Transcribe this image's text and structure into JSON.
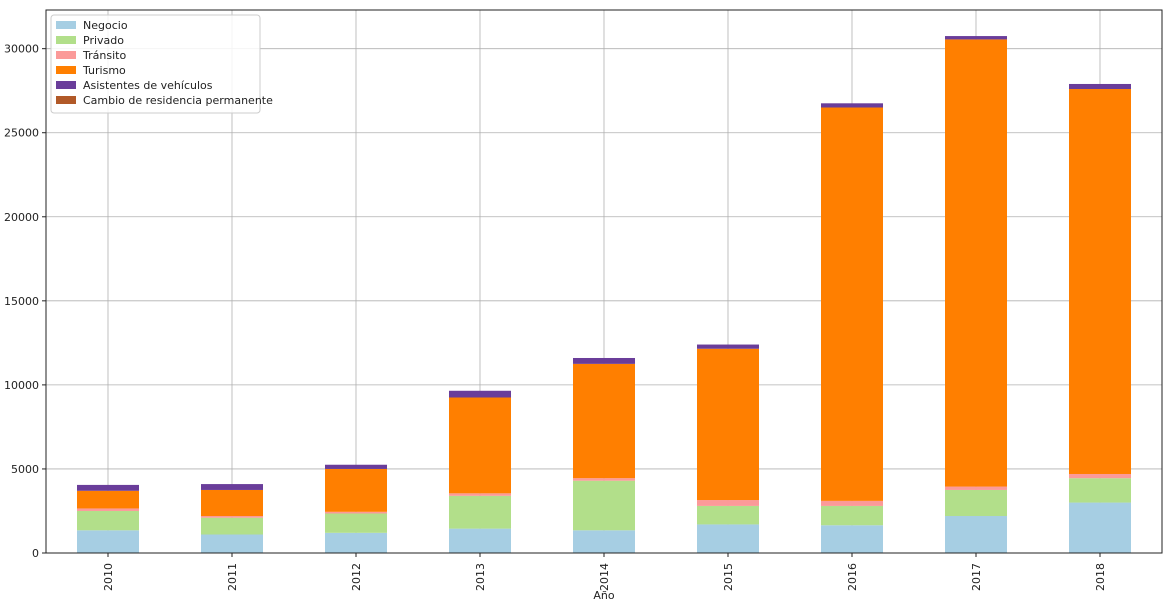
{
  "chart_data": {
    "type": "bar",
    "stacked": true,
    "title": "",
    "xlabel": "Año",
    "ylabel": "",
    "categories": [
      "2010",
      "2011",
      "2012",
      "2013",
      "2014",
      "2015",
      "2016",
      "2017",
      "2018"
    ],
    "ylim": [
      0,
      32300
    ],
    "yticks": [
      0,
      5000,
      10000,
      15000,
      20000,
      25000,
      30000
    ],
    "grid": true,
    "legend_position": "top-left",
    "series": [
      {
        "name": "Negocio",
        "color": "#a6cee3",
        "values": [
          1350,
          1100,
          1200,
          1450,
          1350,
          1700,
          1650,
          2200,
          3000
        ]
      },
      {
        "name": "Privado",
        "color": "#b2df8a",
        "values": [
          1150,
          1000,
          1150,
          1950,
          2950,
          1100,
          1150,
          1550,
          1450
        ]
      },
      {
        "name": "Tránsito",
        "color": "#fb9a99",
        "values": [
          150,
          100,
          100,
          150,
          150,
          350,
          300,
          200,
          250
        ]
      },
      {
        "name": "Turismo",
        "color": "#ff7f00",
        "values": [
          1050,
          1550,
          2550,
          5700,
          6800,
          9000,
          23400,
          26600,
          22900
        ]
      },
      {
        "name": "Asistentes de vehículos",
        "color": "#6a3d9a",
        "values": [
          350,
          350,
          250,
          400,
          350,
          250,
          250,
          200,
          300
        ]
      },
      {
        "name": "Cambio de residencia permanente",
        "color": "#b15928",
        "values": [
          0,
          0,
          0,
          0,
          0,
          0,
          0,
          0,
          0
        ]
      }
    ]
  }
}
